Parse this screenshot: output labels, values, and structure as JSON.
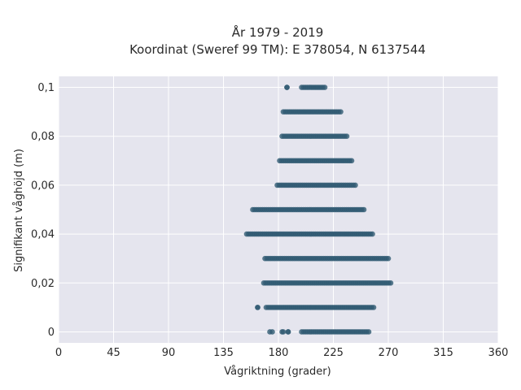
{
  "chart_data": {
    "type": "scatter",
    "title_line1": "År 1979 - 2019",
    "title_line2": "Koordinat (Sweref 99 TM): E 378054, N 6137544",
    "xlabel": "Vågriktning (grader)",
    "ylabel": "Signifikant våghöjd (m)",
    "xlim": [
      0,
      360
    ],
    "ylim": [
      -0.0045,
      0.1045
    ],
    "xticks": [
      0,
      45,
      90,
      135,
      180,
      225,
      270,
      315,
      360
    ],
    "xtick_labels": [
      "0",
      "45",
      "90",
      "135",
      "180",
      "225",
      "270",
      "315",
      "360"
    ],
    "yticks": [
      0,
      0.02,
      0.04,
      0.06,
      0.08,
      0.1
    ],
    "ytick_labels": [
      "0",
      "0,02",
      "0,04",
      "0,06",
      "0,08",
      "0,1"
    ],
    "grid": true,
    "color": "#2f5a72",
    "bands": [
      {
        "y": 0.1,
        "segments": [
          [
            187,
            187
          ],
          [
            199,
            218
          ]
        ]
      },
      {
        "y": 0.09,
        "segments": [
          [
            184,
            231
          ]
        ]
      },
      {
        "y": 0.08,
        "segments": [
          [
            183,
            236
          ]
        ]
      },
      {
        "y": 0.07,
        "segments": [
          [
            181,
            240
          ]
        ]
      },
      {
        "y": 0.06,
        "segments": [
          [
            179,
            243
          ]
        ]
      },
      {
        "y": 0.05,
        "segments": [
          [
            159,
            250
          ]
        ]
      },
      {
        "y": 0.04,
        "segments": [
          [
            154,
            257
          ]
        ]
      },
      {
        "y": 0.03,
        "segments": [
          [
            169,
            270
          ]
        ]
      },
      {
        "y": 0.02,
        "segments": [
          [
            168,
            272
          ]
        ]
      },
      {
        "y": 0.01,
        "segments": [
          [
            163,
            163
          ],
          [
            170,
            258
          ]
        ]
      },
      {
        "y": 0.0,
        "segments": [
          [
            173,
            175
          ],
          [
            183,
            184
          ],
          [
            188,
            188
          ],
          [
            199,
            254
          ]
        ]
      }
    ]
  }
}
